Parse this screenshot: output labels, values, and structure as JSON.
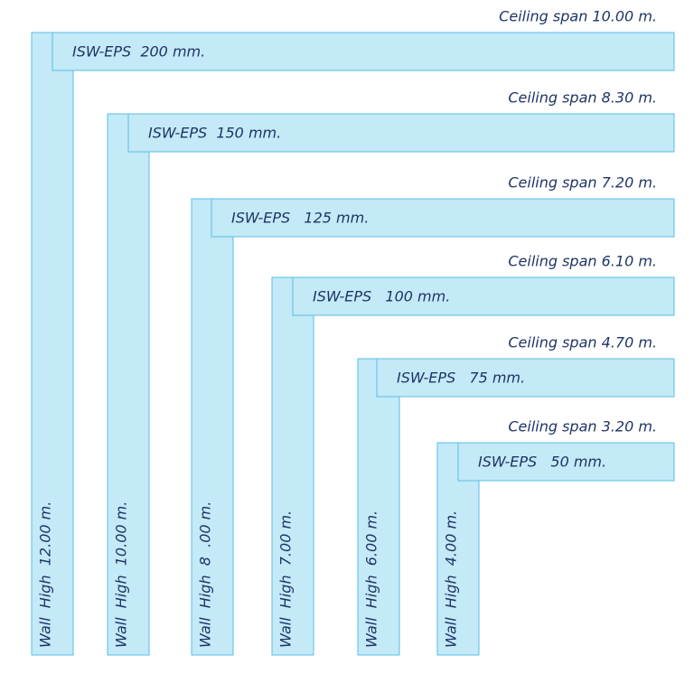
{
  "items": [
    {
      "ceiling_span": "Ceiling span 10.00 m.",
      "panel": "ISW-EPS  200 mm.",
      "wall": "Wall  High  12.00 m."
    },
    {
      "ceiling_span": "Ceiling span 8.30 m.",
      "panel": "ISW-EPS  150 mm.",
      "wall": "Wall  High  10.00 m."
    },
    {
      "ceiling_span": "Ceiling span 7.20 m.",
      "panel": "ISW-EPS   125 mm.",
      "wall": "Wall  High  8  .00 m."
    },
    {
      "ceiling_span": "Ceiling span 6.10 m.",
      "panel": "ISW-EPS   100 mm.",
      "wall": "Wall  High  7.00 m."
    },
    {
      "ceiling_span": "Ceiling span 4.70 m.",
      "panel": "ISW-EPS   75 mm.",
      "wall": "Wall  High  6.00 m."
    },
    {
      "ceiling_span": "Ceiling span 3.20 m.",
      "panel": "ISW-EPS   50 mm.",
      "wall": "Wall  High  4.00 m."
    }
  ]
}
